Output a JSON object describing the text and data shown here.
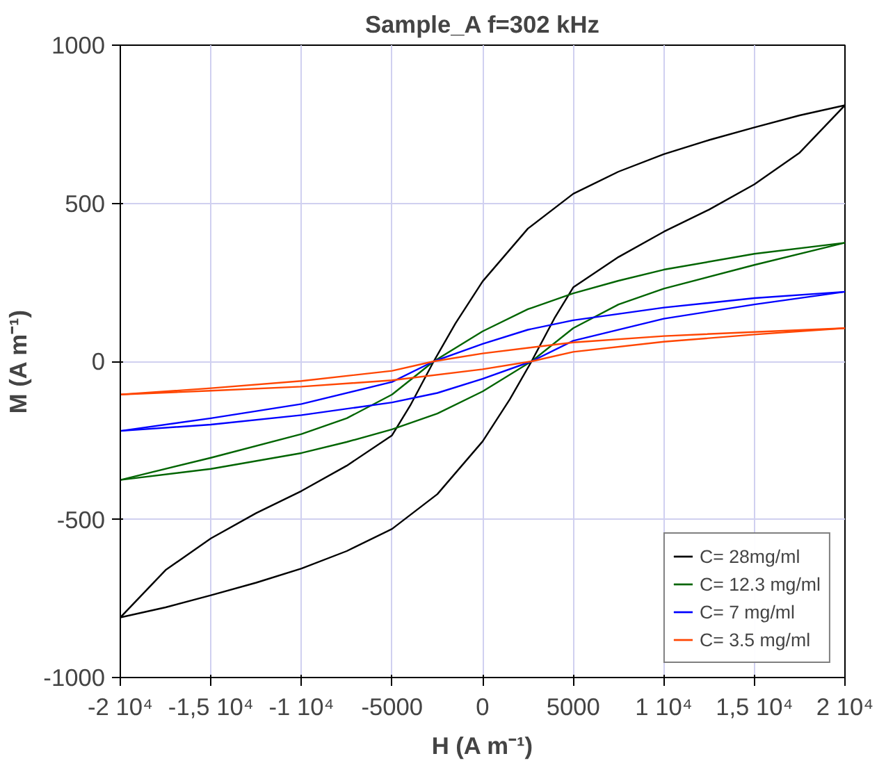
{
  "chart_data": {
    "type": "line",
    "title": "Sample_A f=302 kHz",
    "xlabel": "H (A m⁻¹)",
    "ylabel": "M (A m⁻¹)",
    "xlim": [
      -20000,
      20000
    ],
    "ylim": [
      -1000,
      1000
    ],
    "xticks": [
      {
        "value": -20000,
        "label": "-2 10⁴"
      },
      {
        "value": -15000,
        "label": "-1,5 10⁴"
      },
      {
        "value": -10000,
        "label": "-1 10⁴"
      },
      -5000,
      0,
      5000,
      {
        "value": 10000,
        "label": "1 10⁴"
      },
      {
        "value": 15000,
        "label": "1,5 10⁴"
      },
      {
        "value": 20000,
        "label": "2 10⁴"
      }
    ],
    "yticks": [
      -1000,
      -500,
      0,
      500,
      1000
    ],
    "grid": true,
    "legend": "bottom right",
    "marker": "none",
    "line_style": "solid",
    "series": [
      {
        "name": "C= 28mg/ml",
        "color": "#000000",
        "x": [
          20000,
          17500,
          15000,
          12500,
          10000,
          7500,
          5000,
          2500,
          0,
          -1500,
          -2700,
          -4000,
          -5000,
          -7500,
          -10000,
          -12500,
          -15000,
          -17500,
          -20000,
          -17500,
          -15000,
          -12500,
          -10000,
          -7500,
          -5000,
          -2500,
          0,
          1500,
          2700,
          4000,
          5000,
          7500,
          10000,
          12500,
          15000,
          17500,
          20000
        ],
        "values": [
          810,
          778,
          740,
          700,
          655,
          600,
          530,
          420,
          253,
          120,
          0,
          -140,
          -234,
          -330,
          -410,
          -480,
          -560,
          -660,
          -810,
          -778,
          -740,
          -700,
          -655,
          -600,
          -530,
          -420,
          -253,
          -120,
          0,
          140,
          234,
          330,
          410,
          480,
          560,
          660,
          810
        ]
      },
      {
        "name": "C= 12.3 mg/ml",
        "color": "#006400",
        "x": [
          20000,
          15000,
          10000,
          7500,
          5000,
          2500,
          0,
          -2700,
          -5000,
          -7500,
          -10000,
          -15000,
          -20000,
          -15000,
          -10000,
          -7500,
          -5000,
          -2500,
          0,
          2700,
          5000,
          7500,
          10000,
          15000,
          20000
        ],
        "values": [
          375,
          340,
          290,
          255,
          215,
          165,
          95,
          0,
          -105,
          -180,
          -230,
          -305,
          -375,
          -340,
          -290,
          -255,
          -215,
          -165,
          -95,
          0,
          105,
          180,
          230,
          305,
          375
        ]
      },
      {
        "name": "C= 7 mg/ml",
        "color": "#0000ff",
        "x": [
          20000,
          15000,
          10000,
          5000,
          2500,
          0,
          -2700,
          -5000,
          -10000,
          -15000,
          -20000,
          -15000,
          -10000,
          -5000,
          -2500,
          0,
          2700,
          5000,
          10000,
          15000,
          20000
        ],
        "values": [
          220,
          200,
          170,
          130,
          100,
          55,
          0,
          -65,
          -135,
          -180,
          -220,
          -200,
          -170,
          -130,
          -100,
          -55,
          0,
          65,
          135,
          180,
          220
        ]
      },
      {
        "name": "C= 3.5 mg/ml",
        "color": "#ff4500",
        "x": [
          20000,
          15000,
          10000,
          5000,
          0,
          -2700,
          -5000,
          -10000,
          -15000,
          -20000,
          -15000,
          -10000,
          -5000,
          0,
          2700,
          5000,
          10000,
          15000,
          20000
        ],
        "values": [
          105,
          93,
          80,
          60,
          25,
          0,
          -30,
          -62,
          -85,
          -105,
          -93,
          -80,
          -60,
          -25,
          0,
          30,
          62,
          85,
          105
        ]
      }
    ]
  }
}
